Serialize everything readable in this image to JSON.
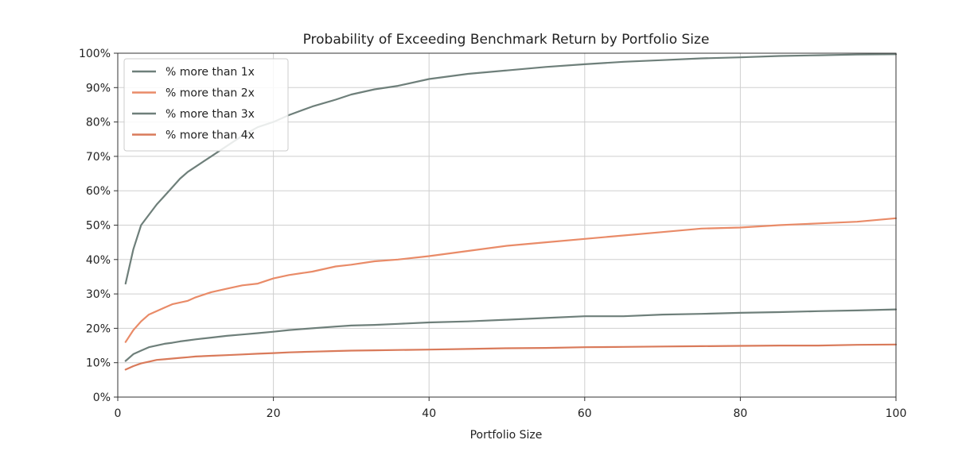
{
  "chart_data": {
    "type": "line",
    "title": "Probability of Exceeding Benchmark Return by Portfolio Size",
    "xlabel": "Portfolio Size",
    "ylabel": "",
    "xlim": [
      0,
      100
    ],
    "ylim": [
      0,
      100
    ],
    "x_ticks": [
      0,
      20,
      40,
      60,
      80,
      100
    ],
    "x_tick_labels": [
      "0",
      "20",
      "40",
      "60",
      "80",
      "100"
    ],
    "y_ticks": [
      0,
      10,
      20,
      30,
      40,
      50,
      60,
      70,
      80,
      90,
      100
    ],
    "y_tick_labels": [
      "0%",
      "10%",
      "20%",
      "30%",
      "40%",
      "50%",
      "60%",
      "70%",
      "80%",
      "90%",
      "100%"
    ],
    "grid": true,
    "legend_position": "top-left",
    "x": [
      1,
      2,
      3,
      4,
      5,
      6,
      7,
      8,
      9,
      10,
      12,
      14,
      16,
      18,
      20,
      22,
      25,
      28,
      30,
      33,
      36,
      40,
      45,
      50,
      55,
      60,
      65,
      70,
      75,
      80,
      85,
      90,
      95,
      100
    ],
    "series": [
      {
        "name": "% more than 1x",
        "color": "#6e7f7a",
        "values": [
          33,
          43,
          50,
          53,
          56,
          58.5,
          61,
          63.5,
          65.5,
          67,
          70,
          73,
          76,
          78.5,
          80,
          82,
          84.5,
          86.5,
          88,
          89.5,
          90.5,
          92.5,
          94,
          95,
          96,
          96.8,
          97.5,
          98,
          98.5,
          98.8,
          99.2,
          99.4,
          99.6,
          99.7
        ]
      },
      {
        "name": "% more than 2x",
        "color": "#e98b68",
        "values": [
          16,
          19.5,
          22,
          24,
          25,
          26,
          27,
          27.5,
          28,
          29,
          30.5,
          31.5,
          32.5,
          33,
          34.5,
          35.5,
          36.5,
          38,
          38.5,
          39.5,
          40,
          41,
          42.5,
          44,
          45,
          46,
          47,
          48,
          49,
          49.3,
          50,
          50.5,
          51,
          52
        ]
      },
      {
        "name": "% more than 3x",
        "color": "#6e7f7a",
        "values": [
          10.5,
          12.5,
          13.5,
          14.5,
          15,
          15.5,
          15.8,
          16.2,
          16.5,
          16.8,
          17.3,
          17.8,
          18.2,
          18.6,
          19,
          19.5,
          20,
          20.5,
          20.8,
          21,
          21.3,
          21.7,
          22,
          22.5,
          23,
          23.5,
          23.5,
          24,
          24.2,
          24.5,
          24.7,
          25,
          25.2,
          25.5
        ]
      },
      {
        "name": "% more than 4x",
        "color": "#d97a5a",
        "values": [
          8,
          9,
          9.8,
          10.3,
          10.8,
          11,
          11.2,
          11.4,
          11.6,
          11.8,
          12,
          12.2,
          12.4,
          12.6,
          12.8,
          13,
          13.2,
          13.4,
          13.5,
          13.6,
          13.7,
          13.8,
          14,
          14.2,
          14.3,
          14.5,
          14.6,
          14.7,
          14.8,
          14.9,
          15,
          15,
          15.2,
          15.3
        ]
      }
    ]
  }
}
